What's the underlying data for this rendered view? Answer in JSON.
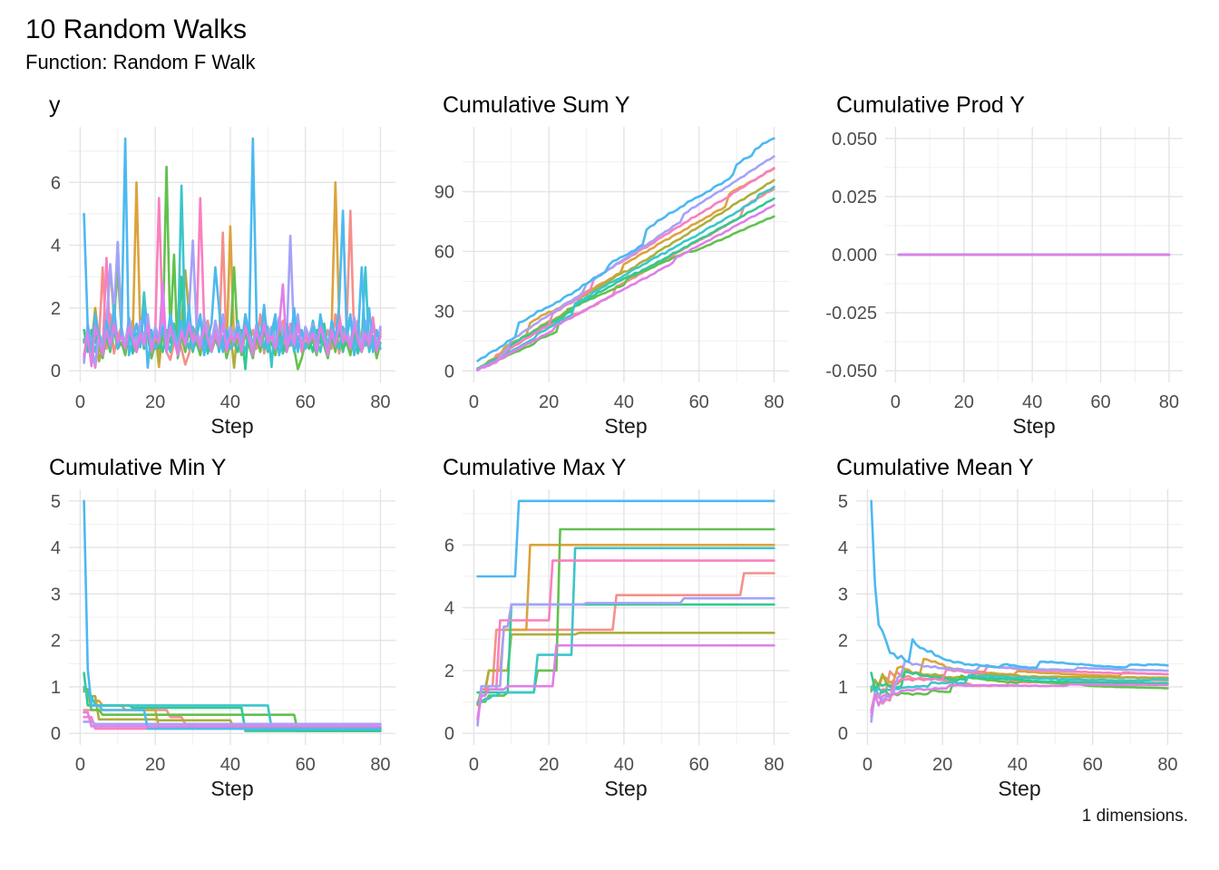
{
  "header": {
    "title": "10 Random Walks",
    "subtitle": "Function: Random F Walk"
  },
  "caption": {
    "text": "1 dimensions."
  },
  "chart_data": {
    "type": "line",
    "title": "10 Random Walks",
    "subtitle": "Function: Random F Walk",
    "layout": "2 rows x 3 columns of small multiples, no legend, minimal theme with light grey major/minor gridlines",
    "theme": {
      "background": "#FFFFFF",
      "grid_major": "#E4E4E4",
      "grid_minor": "#F1F1F1",
      "tick_text": "#4D4D4D",
      "axis_title_text": "#1A1A1A",
      "title_text": "#000000"
    },
    "x": {
      "label": "Step",
      "domain": [
        -3,
        84
      ],
      "ticks": [
        0,
        20,
        40,
        60,
        80
      ],
      "tick_labels": [
        "0",
        "20",
        "40",
        "60",
        "80"
      ],
      "minor": [
        10,
        30,
        50,
        70
      ]
    },
    "steps": 80,
    "panels": [
      {
        "id": "y",
        "title": "y",
        "transform": "identity",
        "ydomain": [
          -0.37,
          7.77
        ],
        "yticks": [
          0,
          2,
          4,
          6
        ],
        "ytick_labels": [
          "0",
          "2",
          "4",
          "6"
        ],
        "yminor": [
          1,
          3,
          5,
          7
        ],
        "mleft": 48
      },
      {
        "id": "cumsum",
        "title": "Cumulative Sum Y",
        "transform": "cumsum",
        "ydomain": [
          -5.8,
          122.6
        ],
        "yticks": [
          0,
          30,
          60,
          90
        ],
        "ytick_labels": [
          "0",
          "30",
          "60",
          "90"
        ],
        "yminor": [
          15,
          45,
          75,
          105
        ],
        "mleft": 48
      },
      {
        "id": "cumprod",
        "title": "Cumulative Prod Y",
        "transform": "zero",
        "ydomain": [
          -0.055,
          0.055
        ],
        "yticks": [
          0.05,
          0.025,
          0.0,
          -0.025,
          -0.05
        ],
        "ytick_labels": [
          "0.050",
          "0.025",
          "0.000",
          "-0.025",
          "-0.050"
        ],
        "yminor": [
          0.0375,
          0.0125,
          -0.0125,
          -0.0375
        ],
        "mleft": 80,
        "note": "all walks' cumulative products collapse to 0.000 (flat line)"
      },
      {
        "id": "cummin",
        "title": "Cumulative Min Y",
        "transform": "cummin",
        "ydomain": [
          -0.25,
          5.25
        ],
        "yticks": [
          0,
          1,
          2,
          3,
          4,
          5
        ],
        "ytick_labels": [
          "0",
          "1",
          "2",
          "3",
          "4",
          "5"
        ],
        "yminor": [
          0.5,
          1.5,
          2.5,
          3.5,
          4.5
        ],
        "mleft": 48
      },
      {
        "id": "cummax",
        "title": "Cumulative Max Y",
        "transform": "cummax",
        "ydomain": [
          -0.37,
          7.77
        ],
        "yticks": [
          0,
          2,
          4,
          6
        ],
        "ytick_labels": [
          "0",
          "2",
          "4",
          "6"
        ],
        "yminor": [
          1,
          3,
          5,
          7
        ],
        "mleft": 48
      },
      {
        "id": "cummean",
        "title": "Cumulative Mean Y",
        "transform": "cummean",
        "ydomain": [
          -0.25,
          5.25
        ],
        "yticks": [
          0,
          1,
          2,
          3,
          4,
          5
        ],
        "ytick_labels": [
          "0",
          "1",
          "2",
          "3",
          "4",
          "5"
        ],
        "yminor": [
          0.5,
          1.5,
          2.5,
          3.5,
          4.5
        ],
        "mleft": 48
      }
    ],
    "series": [
      {
        "name": "walk-salmon",
        "color": "#F5908A",
        "y": [
          0.5,
          1.2,
          0.6,
          1.5,
          0.9,
          3.3,
          0.7,
          1.8,
          0.55,
          1.1,
          1.4,
          0.6,
          1.0,
          1.6,
          0.8,
          1.2,
          0.9,
          1.5,
          0.7,
          1.1,
          0.8,
          1.2,
          0.6,
          0.35,
          0.9,
          1.3,
          0.7,
          0.2,
          0.55,
          1.1,
          1.4,
          0.6,
          1.0,
          1.6,
          0.8,
          1.2,
          0.9,
          4.4,
          0.7,
          1.1,
          0.8,
          1.2,
          0.6,
          1.5,
          0.9,
          1.3,
          0.7,
          1.8,
          0.55,
          1.1,
          1.4,
          0.6,
          1.0,
          1.6,
          0.8,
          1.2,
          0.9,
          1.5,
          0.7,
          1.1,
          0.8,
          1.2,
          0.6,
          1.5,
          0.9,
          1.3,
          0.7,
          1.8,
          0.55,
          1.1,
          1.4,
          5.1,
          1.0,
          1.6,
          0.8,
          1.2,
          0.9,
          1.5,
          0.7,
          1.1
        ]
      },
      {
        "name": "walk-gold",
        "color": "#DCA33C",
        "y": [
          0.95,
          1.3,
          0.7,
          2.0,
          1.0,
          0.6,
          1.4,
          3.3,
          1.7,
          0.9,
          1.2,
          0.5,
          1.5,
          1.0,
          6.0,
          1.3,
          0.9,
          1.6,
          0.6,
          1.2,
          0.12,
          1.3,
          0.7,
          1.6,
          1.0,
          0.6,
          1.4,
          0.8,
          1.7,
          0.9,
          1.2,
          0.5,
          1.5,
          1.0,
          0.7,
          1.3,
          0.9,
          1.6,
          0.6,
          4.6,
          0.9,
          1.3,
          0.7,
          1.6,
          1.0,
          0.6,
          1.4,
          0.8,
          1.7,
          0.9,
          1.2,
          0.5,
          1.5,
          1.0,
          0.7,
          1.3,
          0.9,
          1.6,
          0.6,
          1.2,
          0.9,
          1.3,
          0.7,
          1.6,
          1.0,
          0.6,
          1.4,
          6.0,
          1.7,
          0.9,
          1.2,
          0.5,
          1.5,
          1.0,
          0.7,
          1.3,
          0.9,
          1.6,
          0.6,
          1.2
        ]
      },
      {
        "name": "walk-olive",
        "color": "#AFAD3C",
        "y": [
          0.9,
          1.4,
          0.8,
          2.0,
          0.3,
          0.7,
          1.5,
          0.9,
          1.8,
          3.15,
          1.3,
          0.6,
          1.6,
          1.1,
          0.8,
          1.4,
          1.0,
          1.7,
          0.7,
          1.3,
          0.28,
          1.4,
          0.8,
          1.7,
          1.1,
          0.7,
          1.5,
          3.2,
          1.8,
          1.0,
          1.3,
          0.6,
          1.6,
          1.1,
          0.8,
          1.4,
          1.0,
          1.7,
          0.7,
          1.3,
          0.1,
          1.4,
          0.8,
          1.7,
          1.1,
          0.7,
          1.5,
          0.9,
          1.8,
          1.0,
          1.3,
          0.6,
          1.6,
          1.1,
          0.8,
          1.4,
          1.0,
          1.7,
          0.7,
          1.3,
          1.0,
          1.4,
          0.8,
          1.7,
          1.1,
          0.7,
          1.5,
          0.9,
          1.8,
          1.0,
          1.3,
          0.6,
          1.6,
          1.1,
          0.8,
          1.4,
          1.0,
          1.7,
          0.7,
          1.3
        ]
      },
      {
        "name": "walk-green",
        "color": "#63C14E",
        "y": [
          0.95,
          1.0,
          0.5,
          1.2,
          0.8,
          0.4,
          1.1,
          0.6,
          1.3,
          0.7,
          0.9,
          0.5,
          1.2,
          0.8,
          0.6,
          1.0,
          2.0,
          1.1,
          0.4,
          0.9,
          0.7,
          1.0,
          6.5,
          1.2,
          3.7,
          0.4,
          1.1,
          0.6,
          1.3,
          0.7,
          0.9,
          0.5,
          1.2,
          0.8,
          0.6,
          1.0,
          0.7,
          1.1,
          0.4,
          0.9,
          3.3,
          1.0,
          0.5,
          1.2,
          0.8,
          0.4,
          1.1,
          0.6,
          1.3,
          0.7,
          0.9,
          0.5,
          1.2,
          0.8,
          0.6,
          1.0,
          0.7,
          0.05,
          0.4,
          0.9,
          0.7,
          1.0,
          0.5,
          1.2,
          0.8,
          0.4,
          1.1,
          0.6,
          1.3,
          0.7,
          0.9,
          0.5,
          1.2,
          0.8,
          0.6,
          1.0,
          0.7,
          1.1,
          0.4,
          0.9
        ]
      },
      {
        "name": "walk-emerald",
        "color": "#32C993",
        "y": [
          1.3,
          0.6,
          1.3,
          0.9,
          1.2,
          0.7,
          1.1,
          0.8,
          1.25,
          4.1,
          1.2,
          0.9,
          1.6,
          0.55,
          1.0,
          1.3,
          0.7,
          1.5,
          0.8,
          1.1,
          1.0,
          0.6,
          1.3,
          0.9,
          1.5,
          0.7,
          3.0,
          0.8,
          1.4,
          0.6,
          1.2,
          0.9,
          1.6,
          0.55,
          1.0,
          1.3,
          0.7,
          1.5,
          0.8,
          1.1,
          1.0,
          0.6,
          1.3,
          0.05,
          1.5,
          0.7,
          1.1,
          0.8,
          1.4,
          0.6,
          1.2,
          0.9,
          1.6,
          0.55,
          1.0,
          1.3,
          0.7,
          1.5,
          0.8,
          1.1,
          1.0,
          0.6,
          1.3,
          0.9,
          1.5,
          0.7,
          1.1,
          0.8,
          1.4,
          0.6,
          1.2,
          0.9,
          1.6,
          0.55,
          1.0,
          1.3,
          0.7,
          1.5,
          0.8,
          1.1
        ]
      },
      {
        "name": "walk-cyan",
        "color": "#3CC5CC",
        "y": [
          1.0,
          0.8,
          1.1,
          0.6,
          1.2,
          0.9,
          1.3,
          0.7,
          1.25,
          1.0,
          1.15,
          0.85,
          1.3,
          0.95,
          1.2,
          0.75,
          2.5,
          1.1,
          0.7,
          1.4,
          0.9,
          1.6,
          1.0,
          0.6,
          1.3,
          0.8,
          5.9,
          1.1,
          0.7,
          1.4,
          1.0,
          1.7,
          0.8,
          1.2,
          0.9,
          1.5,
          0.6,
          1.1,
          0.7,
          1.4,
          0.9,
          1.6,
          1.0,
          0.6,
          1.3,
          0.8,
          1.5,
          1.1,
          0.7,
          1.4,
          0.12,
          1.7,
          0.8,
          1.2,
          0.9,
          1.5,
          0.6,
          1.1,
          0.7,
          1.4,
          0.9,
          1.6,
          1.0,
          0.6,
          1.3,
          0.8,
          1.5,
          1.1,
          0.7,
          1.4,
          1.0,
          1.7,
          0.8,
          1.2,
          0.9,
          3.3,
          0.6,
          1.1,
          0.7,
          1.4
        ]
      },
      {
        "name": "walk-pink",
        "color": "#FA7FBE",
        "y": [
          0.35,
          1.4,
          0.7,
          0.1,
          1.1,
          0.6,
          3.6,
          0.9,
          1.8,
          1.0,
          1.3,
          0.8,
          1.6,
          1.1,
          0.8,
          1.5,
          0.9,
          1.7,
          0.6,
          1.3,
          5.5,
          1.4,
          0.7,
          1.7,
          1.1,
          0.6,
          1.4,
          0.9,
          1.8,
          1.0,
          1.3,
          5.5,
          1.6,
          1.1,
          0.8,
          1.5,
          0.9,
          1.7,
          0.6,
          1.3,
          1.0,
          1.4,
          0.7,
          1.7,
          1.1,
          0.6,
          1.4,
          0.9,
          1.8,
          1.0,
          1.3,
          0.8,
          1.6,
          1.1,
          0.8,
          1.5,
          0.9,
          1.7,
          0.6,
          1.3,
          1.0,
          1.4,
          0.7,
          1.7,
          1.1,
          0.6,
          1.4,
          0.9,
          1.8,
          1.0,
          1.3,
          0.8,
          1.6,
          1.1,
          0.8,
          1.5,
          0.9,
          1.7,
          0.6,
          1.3
        ]
      },
      {
        "name": "walk-lavender",
        "color": "#A5A2F8",
        "y": [
          0.25,
          1.5,
          0.8,
          0.2,
          1.2,
          0.7,
          1.5,
          3.4,
          1.9,
          4.1,
          1.4,
          0.8,
          1.7,
          1.2,
          0.9,
          1.6,
          1.0,
          1.8,
          0.7,
          1.4,
          1.1,
          1.5,
          0.8,
          1.8,
          1.2,
          0.7,
          1.5,
          0.9,
          1.9,
          4.15,
          1.4,
          0.8,
          1.7,
          1.2,
          0.9,
          1.6,
          1.0,
          1.8,
          0.7,
          1.4,
          1.1,
          1.5,
          0.8,
          1.8,
          1.2,
          0.7,
          1.5,
          0.9,
          1.9,
          1.1,
          1.4,
          0.8,
          1.7,
          1.2,
          0.9,
          4.3,
          1.0,
          1.8,
          0.7,
          1.4,
          1.1,
          1.5,
          0.8,
          1.5,
          1.2,
          0.7,
          1.5,
          0.9,
          1.5,
          1.1,
          1.4,
          0.8,
          1.7,
          1.2,
          0.9,
          1.6,
          1.0,
          1.5,
          0.7,
          1.4
        ]
      },
      {
        "name": "walk-sky",
        "color": "#4CB9F0",
        "y": [
          5.0,
          1.4,
          0.6,
          1.8,
          1.1,
          0.5,
          1.6,
          0.9,
          2.1,
          0.7,
          1.2,
          7.4,
          0.5,
          1.0,
          1.5,
          0.8,
          2.0,
          0.1,
          1.3,
          0.7,
          0.9,
          1.4,
          0.6,
          1.8,
          1.1,
          0.5,
          1.6,
          0.9,
          2.1,
          0.7,
          1.2,
          1.8,
          0.5,
          1.0,
          1.5,
          3.3,
          2.0,
          0.6,
          1.3,
          0.7,
          0.9,
          1.4,
          0.6,
          1.8,
          1.1,
          7.4,
          1.6,
          0.9,
          2.1,
          0.7,
          1.2,
          1.8,
          0.5,
          1.0,
          1.5,
          0.8,
          2.0,
          0.6,
          1.3,
          0.7,
          0.9,
          1.4,
          0.6,
          1.8,
          1.1,
          0.5,
          1.6,
          0.9,
          2.1,
          5.1,
          1.2,
          1.8,
          0.5,
          1.0,
          3.3,
          0.8,
          2.0,
          0.6,
          1.3,
          0.7
        ]
      },
      {
        "name": "walk-orchid",
        "color": "#E07FE8",
        "y": [
          0.45,
          1.2,
          0.15,
          1.4,
          1.0,
          0.5,
          1.3,
          0.8,
          1.5,
          0.9,
          1.1,
          0.7,
          1.4,
          1.0,
          0.6,
          1.2,
          0.8,
          1.5,
          0.7,
          1.1,
          0.9,
          2.8,
          0.6,
          1.4,
          1.0,
          0.5,
          1.3,
          0.8,
          1.5,
          0.9,
          1.1,
          0.7,
          1.4,
          1.0,
          0.6,
          1.2,
          0.8,
          1.5,
          0.7,
          1.1,
          0.9,
          1.2,
          0.6,
          1.4,
          1.0,
          0.5,
          1.3,
          0.8,
          1.5,
          0.9,
          1.1,
          0.7,
          1.4,
          2.75,
          0.6,
          1.2,
          0.8,
          1.5,
          0.7,
          1.1,
          0.9,
          1.2,
          0.6,
          1.4,
          1.0,
          0.5,
          1.3,
          0.8,
          1.5,
          0.9,
          1.1,
          0.7,
          1.4,
          1.0,
          0.6,
          1.2,
          0.8,
          1.5,
          0.7,
          1.1
        ]
      }
    ]
  }
}
